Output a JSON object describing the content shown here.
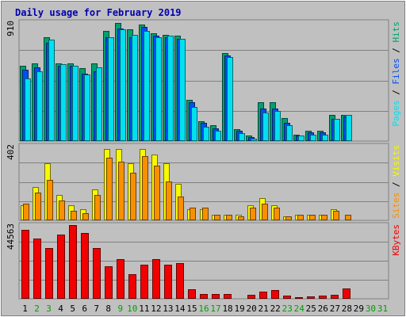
{
  "chart_data": [
    {
      "type": "bar",
      "title": "Daily usage for February 2019",
      "categories": [
        "1",
        "2",
        "3",
        "4",
        "5",
        "6",
        "7",
        "8",
        "9",
        "10",
        "11",
        "12",
        "13",
        "14",
        "15",
        "16",
        "17",
        "18",
        "19",
        "20",
        "21",
        "22",
        "23",
        "24",
        "25",
        "26",
        "27",
        "28",
        "29",
        "30",
        "31"
      ],
      "weekend_days": [
        "2",
        "3",
        "9",
        "10",
        "16",
        "17",
        "23",
        "24",
        "30",
        "31"
      ],
      "ymax_label": "910",
      "ylim": [
        0,
        910
      ],
      "grid": true,
      "series": [
        {
          "name": "Hits",
          "color": "#00a070",
          "values": [
            580,
            600,
            800,
            600,
            600,
            560,
            600,
            850,
            910,
            860,
            900,
            830,
            820,
            810,
            320,
            150,
            120,
            680,
            90,
            40,
            300,
            300,
            180,
            50,
            80,
            80,
            200,
            200,
            0,
            0,
            0
          ]
        },
        {
          "name": "Files",
          "color": "#0050f0",
          "values": [
            550,
            570,
            760,
            580,
            580,
            520,
            540,
            800,
            870,
            800,
            880,
            810,
            800,
            790,
            300,
            140,
            100,
            660,
            80,
            30,
            250,
            250,
            140,
            40,
            70,
            70,
            170,
            190,
            0,
            0,
            0
          ]
        },
        {
          "name": "Pages",
          "color": "#00e0f0",
          "values": [
            480,
            540,
            780,
            590,
            580,
            510,
            570,
            800,
            860,
            820,
            850,
            800,
            810,
            790,
            260,
            110,
            80,
            650,
            60,
            20,
            220,
            230,
            120,
            40,
            50,
            50,
            170,
            200,
            0,
            0,
            0
          ]
        }
      ],
      "ylabel_parts": [
        "Pages",
        "Files",
        "Hits"
      ]
    },
    {
      "type": "bar",
      "ymax_label": "402",
      "ylim": [
        0,
        402
      ],
      "grid": true,
      "series": [
        {
          "name": "Visits",
          "color": "#f8f800",
          "values": [
            80,
            180,
            310,
            140,
            80,
            60,
            170,
            390,
            390,
            310,
            390,
            360,
            310,
            200,
            60,
            60,
            30,
            30,
            30,
            80,
            120,
            80,
            20,
            30,
            30,
            30,
            60,
            0,
            0,
            0,
            0
          ]
        },
        {
          "name": "Sites",
          "color": "#f89000",
          "values": [
            90,
            150,
            220,
            110,
            50,
            40,
            140,
            340,
            320,
            260,
            350,
            300,
            210,
            130,
            70,
            70,
            30,
            30,
            20,
            70,
            90,
            70,
            20,
            30,
            30,
            30,
            50,
            30,
            0,
            0,
            0
          ]
        }
      ],
      "ylabel_parts": [
        "Sites",
        "Visits"
      ]
    },
    {
      "type": "bar",
      "ymax_label": "44563",
      "ylim": [
        0,
        44563
      ],
      "grid": true,
      "series": [
        {
          "name": "KBytes",
          "color": "#f00000",
          "values": [
            42000,
            37000,
            31000,
            39000,
            45000,
            40000,
            31000,
            20000,
            24000,
            15000,
            21000,
            24000,
            21000,
            22000,
            5800,
            2800,
            2900,
            2900,
            700,
            2200,
            4500,
            5100,
            1800,
            1200,
            1300,
            1700,
            2500,
            6500,
            0,
            0,
            0
          ]
        }
      ],
      "ylabel_parts": [
        "KBytes"
      ]
    }
  ]
}
